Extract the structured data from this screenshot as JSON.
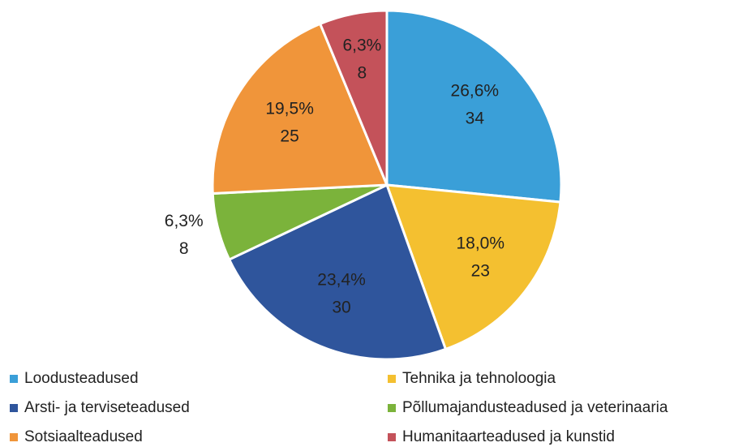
{
  "chart_data": {
    "type": "pie",
    "categories": [
      "Loodusteadused",
      "Tehnika ja tehnoloogia",
      "Arsti- ja terviseteadused",
      "Põllumajandusteadused ja veterinaaria",
      "Sotsiaalteadused",
      "Humanitaarteadused ja kunstid"
    ],
    "values": [
      34,
      23,
      30,
      8,
      25,
      8
    ],
    "percentages": [
      26.6,
      18.0,
      23.4,
      6.3,
      19.5,
      6.3
    ],
    "percentage_labels": [
      "26,6%",
      "18,0%",
      "23,4%",
      "6,3%",
      "19,5%",
      "6,3%"
    ],
    "colors": [
      "#3a9fd8",
      "#f4c030",
      "#2f559c",
      "#7bb33b",
      "#f0953a",
      "#c4525a"
    ],
    "legend": "bottom"
  }
}
